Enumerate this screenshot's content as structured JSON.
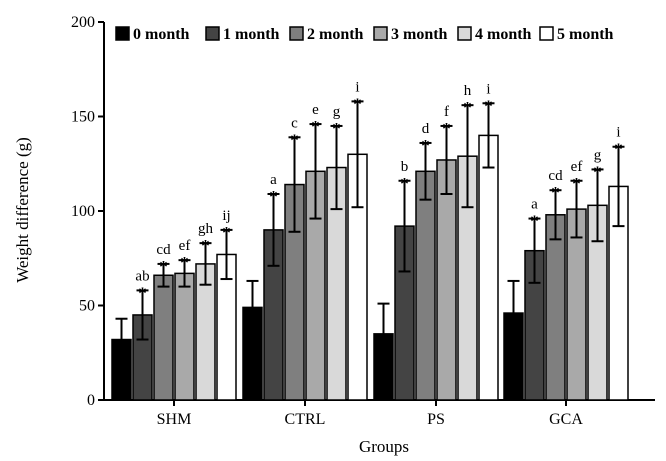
{
  "chart_data": {
    "type": "bar",
    "xlabel": "Groups",
    "ylabel": "Weight difference (g)",
    "ylim": [
      0,
      200
    ],
    "yticks": [
      0,
      50,
      100,
      150,
      200
    ],
    "categories": [
      "SHM",
      "CTRL",
      "PS",
      "GCA"
    ],
    "legend_position": "top",
    "series": [
      {
        "name": "0 month",
        "color": "#000000",
        "values": [
          32,
          49,
          35,
          46
        ],
        "errors": [
          11,
          14,
          16,
          17
        ],
        "stars": [
          false,
          false,
          false,
          false
        ],
        "letters": [
          "",
          "",
          "",
          ""
        ]
      },
      {
        "name": "1 month",
        "color": "#444444",
        "values": [
          45,
          90,
          92,
          79
        ],
        "errors": [
          13,
          19,
          24,
          17
        ],
        "stars": [
          true,
          true,
          true,
          true
        ],
        "letters": [
          "ab",
          "a",
          "b",
          "a"
        ]
      },
      {
        "name": "2 month",
        "color": "#7f7f7f",
        "values": [
          66,
          114,
          121,
          98
        ],
        "errors": [
          6,
          25,
          15,
          13
        ],
        "stars": [
          true,
          true,
          true,
          true
        ],
        "letters": [
          "cd",
          "c",
          "d",
          "cd"
        ]
      },
      {
        "name": "3 month",
        "color": "#a9a9a9",
        "values": [
          67,
          121,
          127,
          101
        ],
        "errors": [
          7,
          25,
          18,
          15
        ],
        "stars": [
          true,
          true,
          true,
          true
        ],
        "letters": [
          "ef",
          "e",
          "f",
          "ef"
        ]
      },
      {
        "name": "4 month",
        "color": "#d9d9d9",
        "values": [
          72,
          123,
          129,
          103
        ],
        "errors": [
          11,
          22,
          27,
          19
        ],
        "stars": [
          true,
          true,
          true,
          true
        ],
        "letters": [
          "gh",
          "g",
          "h",
          "g"
        ]
      },
      {
        "name": "5 month",
        "color": "#ffffff",
        "values": [
          77,
          130,
          140,
          113
        ],
        "errors": [
          13,
          28,
          17,
          21
        ],
        "stars": [
          true,
          true,
          true,
          true
        ],
        "letters": [
          "ij",
          "i",
          "i",
          "i"
        ]
      }
    ]
  }
}
